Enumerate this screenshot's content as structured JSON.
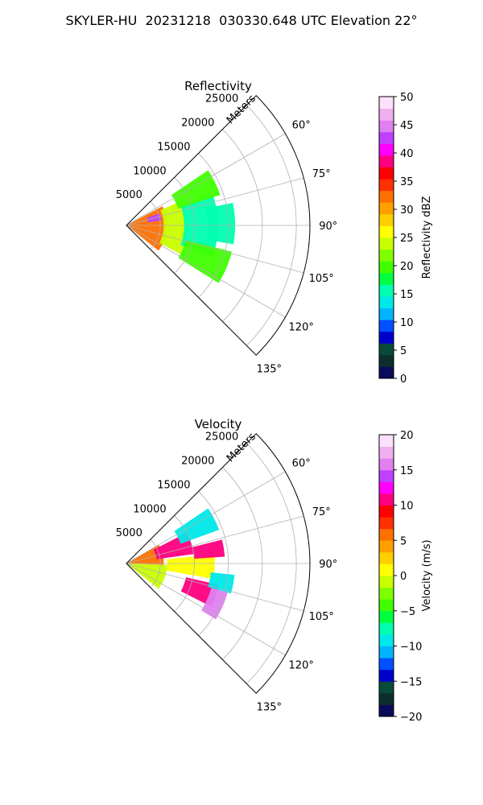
{
  "figure_title": "SKYLER-HU  20231218  030330.648 UTC Elevation 22°",
  "colors": {
    "frame": "#000000",
    "grid": "#b0b0b0"
  },
  "chart_data": [
    {
      "type": "polar-sector",
      "title": "Reflectivity",
      "r_label": "Meters",
      "r_ticks": [
        5000,
        10000,
        15000,
        20000,
        25000
      ],
      "r_tick_labels": [
        "5000",
        "10000",
        "15000",
        "20000",
        "25000"
      ],
      "r_max": 27000,
      "theta_range_deg": [
        45,
        135
      ],
      "theta_ticks": [
        60,
        75,
        90,
        105,
        120,
        135
      ],
      "theta_tick_labels": [
        "60°",
        "75°",
        "90°",
        "105°",
        "120°",
        "135°"
      ],
      "grid": true,
      "colorbar": {
        "label": "Reflectivity dBZ",
        "range": [
          0,
          50
        ],
        "ticks": [
          0,
          5,
          10,
          15,
          20,
          25,
          30,
          35,
          40,
          45,
          50
        ],
        "tick_labels": [
          "0",
          "5",
          "10",
          "15",
          "20",
          "25",
          "30",
          "35",
          "40",
          "45",
          "50"
        ],
        "colormap": [
          "#0a0a5a",
          "#0c2e2e",
          "#0a4a3a",
          "#0000cc",
          "#0050ff",
          "#00b4ff",
          "#00e8e8",
          "#00ffb0",
          "#00ff40",
          "#40ff00",
          "#80ff00",
          "#c8ff00",
          "#ffff00",
          "#ffd000",
          "#ffa000",
          "#ff7000",
          "#ff3000",
          "#ff0000",
          "#ff0080",
          "#ff00ff",
          "#c040ff",
          "#e080f0",
          "#f0b0f0",
          "#fce0fc"
        ]
      },
      "echo_regions": [
        {
          "r": [
            300,
            6000
          ],
          "theta": [
            62,
            128
          ],
          "value": 32
        },
        {
          "r": [
            5500,
            9000
          ],
          "theta": [
            66,
            118
          ],
          "value": 24
        },
        {
          "r": [
            3200,
            5200
          ],
          "theta": [
            70,
            82
          ],
          "value": 42
        },
        {
          "r": [
            8500,
            13500
          ],
          "theta": [
            70,
            110
          ],
          "value": 15
        },
        {
          "r": [
            8000,
            14500
          ],
          "theta": [
            56,
            72
          ],
          "value": 20
        },
        {
          "r": [
            9000,
            16000
          ],
          "theta": [
            104,
            122
          ],
          "value": 20
        },
        {
          "r": [
            12000,
            16000
          ],
          "theta": [
            78,
            100
          ],
          "value": 15
        }
      ]
    },
    {
      "type": "polar-sector",
      "title": "Velocity",
      "r_label": "Meters",
      "r_ticks": [
        5000,
        10000,
        15000,
        20000,
        25000
      ],
      "r_tick_labels": [
        "5000",
        "10000",
        "15000",
        "20000",
        "25000"
      ],
      "r_max": 27000,
      "theta_range_deg": [
        45,
        135
      ],
      "theta_ticks": [
        60,
        75,
        90,
        105,
        120,
        135
      ],
      "theta_tick_labels": [
        "60°",
        "75°",
        "90°",
        "105°",
        "120°",
        "135°"
      ],
      "grid": true,
      "colorbar": {
        "label": "Velocity (m/s)",
        "range": [
          -20,
          20
        ],
        "ticks": [
          -20,
          -15,
          -10,
          -5,
          0,
          5,
          10,
          15,
          20
        ],
        "tick_labels": [
          "−20",
          "−15",
          "−10",
          "−5",
          "0",
          "5",
          "10",
          "15",
          "20"
        ],
        "colormap": [
          "#0a0a5a",
          "#0c2e2e",
          "#0a4a3a",
          "#0000cc",
          "#0050ff",
          "#00b4ff",
          "#00e8e8",
          "#00ffb0",
          "#00ff40",
          "#40ff00",
          "#80ff00",
          "#c8ff00",
          "#ffff00",
          "#ffd000",
          "#ffa000",
          "#ff7000",
          "#ff3000",
          "#ff0000",
          "#ff0080",
          "#ff00ff",
          "#c040ff",
          "#e080f0",
          "#f0b0f0",
          "#fce0fc"
        ]
      },
      "echo_regions": [
        {
          "r": [
            300,
            5500
          ],
          "theta": [
            60,
            92
          ],
          "value": 6
        },
        {
          "r": [
            300,
            6000
          ],
          "theta": [
            92,
            128
          ],
          "value": -1
        },
        {
          "r": [
            4500,
            10000
          ],
          "theta": [
            63,
            82
          ],
          "value": 10
        },
        {
          "r": [
            6000,
            13000
          ],
          "theta": [
            84,
            100
          ],
          "value": 1
        },
        {
          "r": [
            8500,
            14500
          ],
          "theta": [
            56,
            70
          ],
          "value": -9
        },
        {
          "r": [
            10000,
            14500
          ],
          "theta": [
            76,
            86
          ],
          "value": 10
        },
        {
          "r": [
            9000,
            14000
          ],
          "theta": [
            103,
            117
          ],
          "value": 10
        },
        {
          "r": [
            13000,
            15500
          ],
          "theta": [
            106,
            122
          ],
          "value": 16
        },
        {
          "r": [
            12500,
            16000
          ],
          "theta": [
            96,
            106
          ],
          "value": -10
        }
      ]
    }
  ]
}
